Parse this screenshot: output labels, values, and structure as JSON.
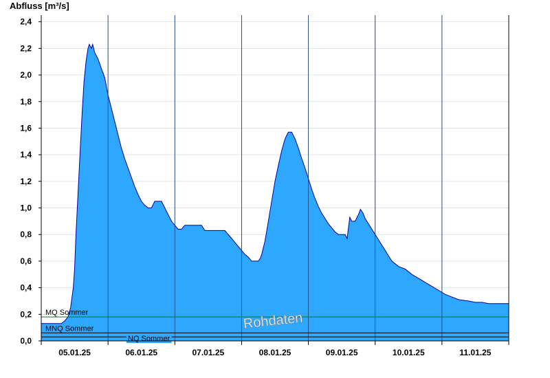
{
  "chart_data": {
    "type": "area",
    "ylabel": "Abfluss [m³/s]",
    "ylim": [
      0,
      2.45
    ],
    "yticks": [
      "0,0",
      "0,2",
      "0,4",
      "0,6",
      "0,8",
      "1,0",
      "1,2",
      "1,4",
      "1,6",
      "1,8",
      "2,0",
      "2,2",
      "2,4"
    ],
    "xlim": [
      0,
      7
    ],
    "xticks": [
      {
        "x": 0.5,
        "label": "05.01.25"
      },
      {
        "x": 1.5,
        "label": "06.01.25"
      },
      {
        "x": 2.5,
        "label": "07.01.25"
      },
      {
        "x": 3.5,
        "label": "08.01.25"
      },
      {
        "x": 4.5,
        "label": "09.01.25"
      },
      {
        "x": 5.5,
        "label": "10.01.25"
      },
      {
        "x": 6.5,
        "label": "11.01.25"
      }
    ],
    "grid": true,
    "colors": {
      "fill": "#2EA8FF",
      "line": "#0000A0",
      "mq": "#008000",
      "mnq": "#000000",
      "nq": "#000000"
    },
    "series": [
      {
        "points": [
          [
            0.0,
            0.13
          ],
          [
            0.3,
            0.13
          ],
          [
            0.35,
            0.15
          ],
          [
            0.4,
            0.18
          ],
          [
            0.44,
            0.25
          ],
          [
            0.48,
            0.4
          ],
          [
            0.5,
            0.55
          ],
          [
            0.52,
            0.8
          ],
          [
            0.55,
            1.1
          ],
          [
            0.58,
            1.4
          ],
          [
            0.61,
            1.7
          ],
          [
            0.64,
            1.95
          ],
          [
            0.67,
            2.1
          ],
          [
            0.7,
            2.2
          ],
          [
            0.72,
            2.23
          ],
          [
            0.75,
            2.2
          ],
          [
            0.77,
            2.23
          ],
          [
            0.8,
            2.17
          ],
          [
            0.85,
            2.12
          ],
          [
            0.9,
            2.05
          ],
          [
            0.95,
            1.98
          ],
          [
            1.0,
            1.85
          ],
          [
            1.05,
            1.75
          ],
          [
            1.1,
            1.65
          ],
          [
            1.15,
            1.55
          ],
          [
            1.2,
            1.45
          ],
          [
            1.25,
            1.37
          ],
          [
            1.3,
            1.3
          ],
          [
            1.35,
            1.23
          ],
          [
            1.4,
            1.16
          ],
          [
            1.45,
            1.1
          ],
          [
            1.5,
            1.05
          ],
          [
            1.55,
            1.02
          ],
          [
            1.6,
            1.0
          ],
          [
            1.65,
            1.0
          ],
          [
            1.7,
            1.05
          ],
          [
            1.8,
            1.05
          ],
          [
            1.85,
            1.0
          ],
          [
            1.9,
            0.95
          ],
          [
            1.95,
            0.9
          ],
          [
            2.0,
            0.87
          ],
          [
            2.05,
            0.84
          ],
          [
            2.1,
            0.84
          ],
          [
            2.15,
            0.87
          ],
          [
            2.25,
            0.87
          ],
          [
            2.4,
            0.87
          ],
          [
            2.45,
            0.83
          ],
          [
            2.55,
            0.83
          ],
          [
            2.75,
            0.83
          ],
          [
            2.8,
            0.8
          ],
          [
            2.85,
            0.77
          ],
          [
            2.9,
            0.74
          ],
          [
            2.95,
            0.71
          ],
          [
            3.0,
            0.68
          ],
          [
            3.05,
            0.65
          ],
          [
            3.1,
            0.63
          ],
          [
            3.15,
            0.6
          ],
          [
            3.25,
            0.6
          ],
          [
            3.28,
            0.62
          ],
          [
            3.3,
            0.65
          ],
          [
            3.35,
            0.75
          ],
          [
            3.4,
            0.9
          ],
          [
            3.45,
            1.05
          ],
          [
            3.5,
            1.2
          ],
          [
            3.55,
            1.32
          ],
          [
            3.6,
            1.43
          ],
          [
            3.65,
            1.52
          ],
          [
            3.7,
            1.57
          ],
          [
            3.75,
            1.57
          ],
          [
            3.8,
            1.52
          ],
          [
            3.85,
            1.45
          ],
          [
            3.9,
            1.37
          ],
          [
            3.95,
            1.3
          ],
          [
            4.0,
            1.22
          ],
          [
            4.05,
            1.14
          ],
          [
            4.1,
            1.07
          ],
          [
            4.15,
            1.01
          ],
          [
            4.2,
            0.96
          ],
          [
            4.25,
            0.92
          ],
          [
            4.3,
            0.88
          ],
          [
            4.35,
            0.85
          ],
          [
            4.4,
            0.82
          ],
          [
            4.45,
            0.8
          ],
          [
            4.55,
            0.8
          ],
          [
            4.58,
            0.77
          ],
          [
            4.62,
            0.93
          ],
          [
            4.65,
            0.9
          ],
          [
            4.7,
            0.9
          ],
          [
            4.75,
            0.95
          ],
          [
            4.78,
            0.99
          ],
          [
            4.82,
            0.96
          ],
          [
            4.85,
            0.92
          ],
          [
            4.9,
            0.88
          ],
          [
            4.95,
            0.84
          ],
          [
            5.0,
            0.8
          ],
          [
            5.05,
            0.76
          ],
          [
            5.1,
            0.72
          ],
          [
            5.15,
            0.68
          ],
          [
            5.2,
            0.64
          ],
          [
            5.25,
            0.6
          ],
          [
            5.3,
            0.58
          ],
          [
            5.35,
            0.56
          ],
          [
            5.45,
            0.54
          ],
          [
            5.55,
            0.5
          ],
          [
            5.65,
            0.47
          ],
          [
            5.75,
            0.44
          ],
          [
            5.85,
            0.41
          ],
          [
            5.95,
            0.38
          ],
          [
            6.05,
            0.35
          ],
          [
            6.15,
            0.33
          ],
          [
            6.25,
            0.31
          ],
          [
            6.4,
            0.3
          ],
          [
            6.5,
            0.29
          ],
          [
            6.6,
            0.29
          ],
          [
            6.7,
            0.28
          ],
          [
            7.0,
            0.28
          ]
        ]
      }
    ],
    "reference_lines": [
      {
        "label": "MQ Sommer",
        "value": 0.18,
        "color": "#008000"
      },
      {
        "label": "MNQ Sommer",
        "value": 0.06,
        "color": "#000000"
      },
      {
        "label": "NQ Sommer",
        "value": 0.03,
        "color": "#000000"
      }
    ],
    "watermark": "Rohdaten"
  }
}
